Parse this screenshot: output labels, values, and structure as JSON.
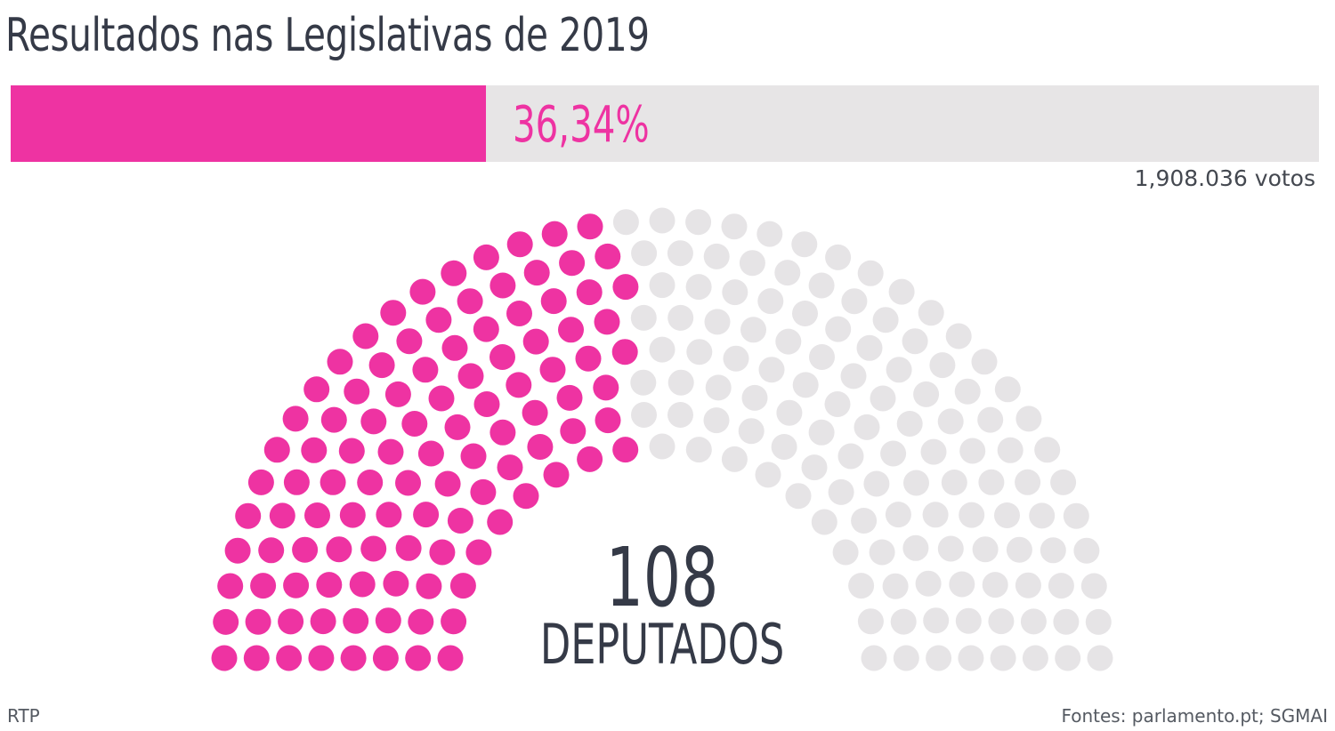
{
  "header": {
    "title": "Resultados nas Legislativas de 2019"
  },
  "result": {
    "percent_label": "36,34%",
    "percent_value": 36.34,
    "votes_label": "1,908.036 votos"
  },
  "center": {
    "seats": "108",
    "seats_label": "DEPUTADOS"
  },
  "footer": {
    "credit": "RTP",
    "sources": "Fontes: parlamento.pt; SGMAI"
  },
  "colors": {
    "party": "#ee33a2",
    "other": "#e6e4e6",
    "text": "#353a47"
  },
  "chart_data": {
    "type": "parliament",
    "title": "Resultados nas Legislativas de 2019",
    "total_seats": 230,
    "rows": 8,
    "series": [
      {
        "name": "party",
        "seats": 108,
        "color": "#ee33a2"
      },
      {
        "name": "others",
        "seats": 122,
        "color": "#e6e4e6"
      }
    ],
    "vote_share_percent": 36.34
  }
}
